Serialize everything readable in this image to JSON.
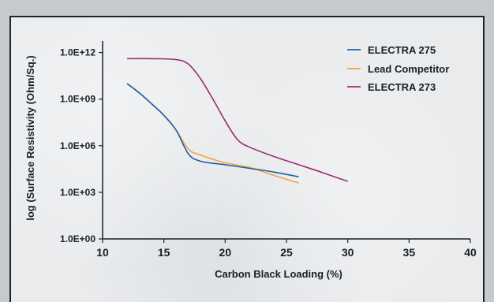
{
  "chart_data": {
    "type": "line",
    "title": "",
    "xlabel": "Carbon Black Loading (%)",
    "ylabel": "log (Surface Resistivity (Ohm/Sq.)",
    "x_ticks": [
      "10",
      "15",
      "20",
      "25",
      "30",
      "35",
      "40"
    ],
    "y_ticks": [
      "1.0E+00",
      "1.0E+03",
      "1.0E+06",
      "1.0E+09",
      "1.0E+12"
    ],
    "xlim": [
      10,
      40
    ],
    "ylim_log10": [
      0,
      13
    ],
    "y_scale": "log",
    "grid": false,
    "legend_position": "top-right",
    "series": [
      {
        "name": "ELECTRA 275",
        "color": "#1f5fa8",
        "points": [
          [
            12,
            10000000000.0
          ],
          [
            13,
            2500000000.0
          ],
          [
            14,
            500000000.0
          ],
          [
            15,
            90000000.0
          ],
          [
            16,
            10000000.0
          ],
          [
            17,
            300000.0
          ],
          [
            18,
            100000.0
          ],
          [
            20,
            60000.0
          ],
          [
            22,
            35000.0
          ],
          [
            24,
            20000.0
          ],
          [
            26,
            10000.0
          ]
        ]
      },
      {
        "name": "Lead Competitor",
        "color": "#f2a53a",
        "points": [
          [
            12,
            10000000000.0
          ],
          [
            13,
            2500000000.0
          ],
          [
            14,
            500000000.0
          ],
          [
            15,
            90000000.0
          ],
          [
            16,
            10000000.0
          ],
          [
            17,
            600000.0
          ],
          [
            18,
            250000.0
          ],
          [
            20,
            80000.0
          ],
          [
            22,
            40000.0
          ],
          [
            24,
            12000.0
          ],
          [
            26,
            4000.0
          ]
        ]
      },
      {
        "name": "ELECTRA 273",
        "color": "#9b2c72",
        "points": [
          [
            12,
            400000000000.0
          ],
          [
            14,
            400000000000.0
          ],
          [
            16,
            350000000000.0
          ],
          [
            17,
            180000000000.0
          ],
          [
            18,
            20000000000.0
          ],
          [
            19,
            1000000000.0
          ],
          [
            20,
            40000000.0
          ],
          [
            21,
            2500000.0
          ],
          [
            22,
            800000.0
          ],
          [
            24,
            200000.0
          ],
          [
            26,
            60000.0
          ],
          [
            28,
            18000.0
          ],
          [
            30,
            5000.0
          ]
        ]
      }
    ]
  }
}
